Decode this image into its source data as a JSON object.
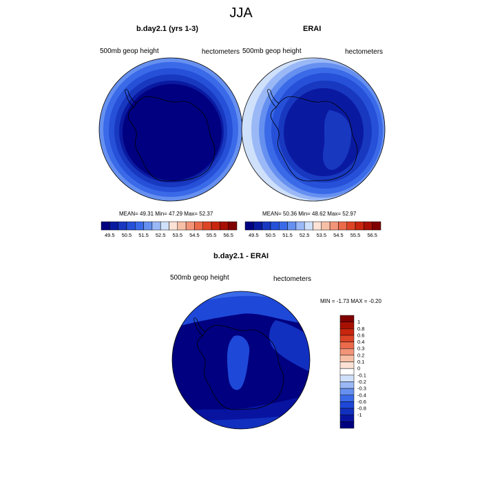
{
  "page_title": "JJA",
  "palette": {
    "colorbar_blues": [
      "#000080",
      "#0a1aa0",
      "#1838c0",
      "#2650d8",
      "#3a6ae8",
      "#6690f0",
      "#9ab8f6",
      "#cfe0fb"
    ],
    "colorbar_reds": [
      "#fbe2d4",
      "#f7c0a6",
      "#f29478",
      "#ea6a4a",
      "#dc4426",
      "#c8260e",
      "#a81004",
      "#800000"
    ],
    "diff_blues": [
      "#000080",
      "#0814a0",
      "#1230c0",
      "#1e48d8",
      "#3a6ae8",
      "#6690f0",
      "#9ab8f6",
      "#cfe0fb",
      "#ffffff"
    ],
    "diff_reds": [
      "#fbe2d4",
      "#f7c0a6",
      "#f29478",
      "#ea6a4a",
      "#dc4426",
      "#c8260e",
      "#a81004",
      "#800000"
    ]
  },
  "panels": [
    {
      "title": "b.day2.1 (yrs 1-3)",
      "left_label": "500mb geop height",
      "right_label": "hectometers",
      "stats": "MEAN=  49.31  Min=  47.29  Max=  52.37",
      "ticks": [
        "49.5",
        "50.5",
        "51.5",
        "52.5",
        "53.5",
        "54.5",
        "55.5",
        "56.5"
      ]
    },
    {
      "title": "ERAI",
      "left_label": "500mb geop height",
      "right_label": "hectometers",
      "stats": "MEAN=  50.36  Min=  48.62  Max=  52.97",
      "ticks": [
        "49.5",
        "50.5",
        "51.5",
        "52.5",
        "53.5",
        "54.5",
        "55.5",
        "56.5"
      ]
    },
    {
      "title": "b.day2.1 - ERAI",
      "left_label": "500mb geop height",
      "right_label": "hectometers",
      "stats": "MIN =  -1.73 MAX =  -0.20",
      "ticks": [
        "1",
        "0.8",
        "0.6",
        "0.4",
        "0.3",
        "0.2",
        "0.1",
        "0",
        "-0.1",
        "-0.2",
        "-0.3",
        "-0.4",
        "-0.6",
        "-0.8",
        "-1"
      ]
    }
  ]
}
